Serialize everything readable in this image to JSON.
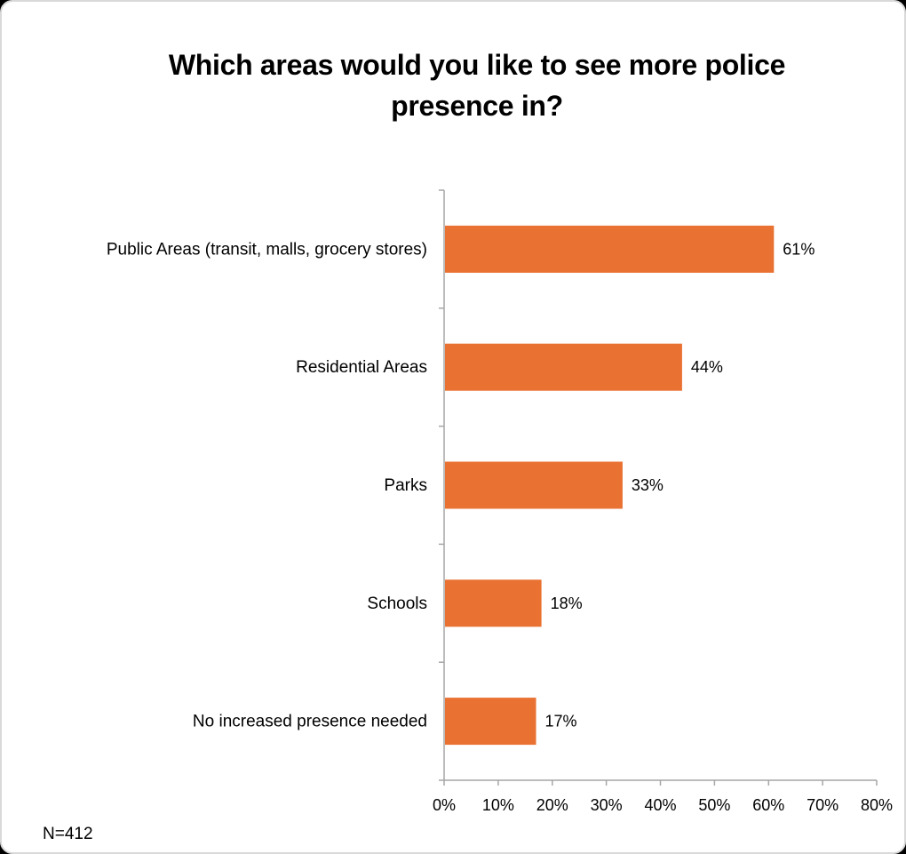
{
  "chart_data": {
    "type": "bar",
    "orientation": "horizontal",
    "title": "Which areas would you like to see more police presence in?",
    "categories": [
      "Public Areas (transit, malls, grocery stores)",
      "Residential Areas",
      "Parks",
      "Schools",
      "No increased presence needed"
    ],
    "values": [
      61,
      44,
      33,
      18,
      17
    ],
    "value_labels": [
      "61%",
      "44%",
      "33%",
      "18%",
      "17%"
    ],
    "xlim": [
      0,
      80
    ],
    "x_ticks": [
      0,
      10,
      20,
      30,
      40,
      50,
      60,
      70,
      80
    ],
    "x_tick_labels": [
      "0%",
      "10%",
      "20%",
      "30%",
      "40%",
      "50%",
      "60%",
      "70%",
      "80%"
    ],
    "xlabel": "",
    "ylabel": "",
    "grid": false,
    "bar_color": "#E97132",
    "axis_color": "#a6a6a6"
  },
  "footnote": "N=412"
}
